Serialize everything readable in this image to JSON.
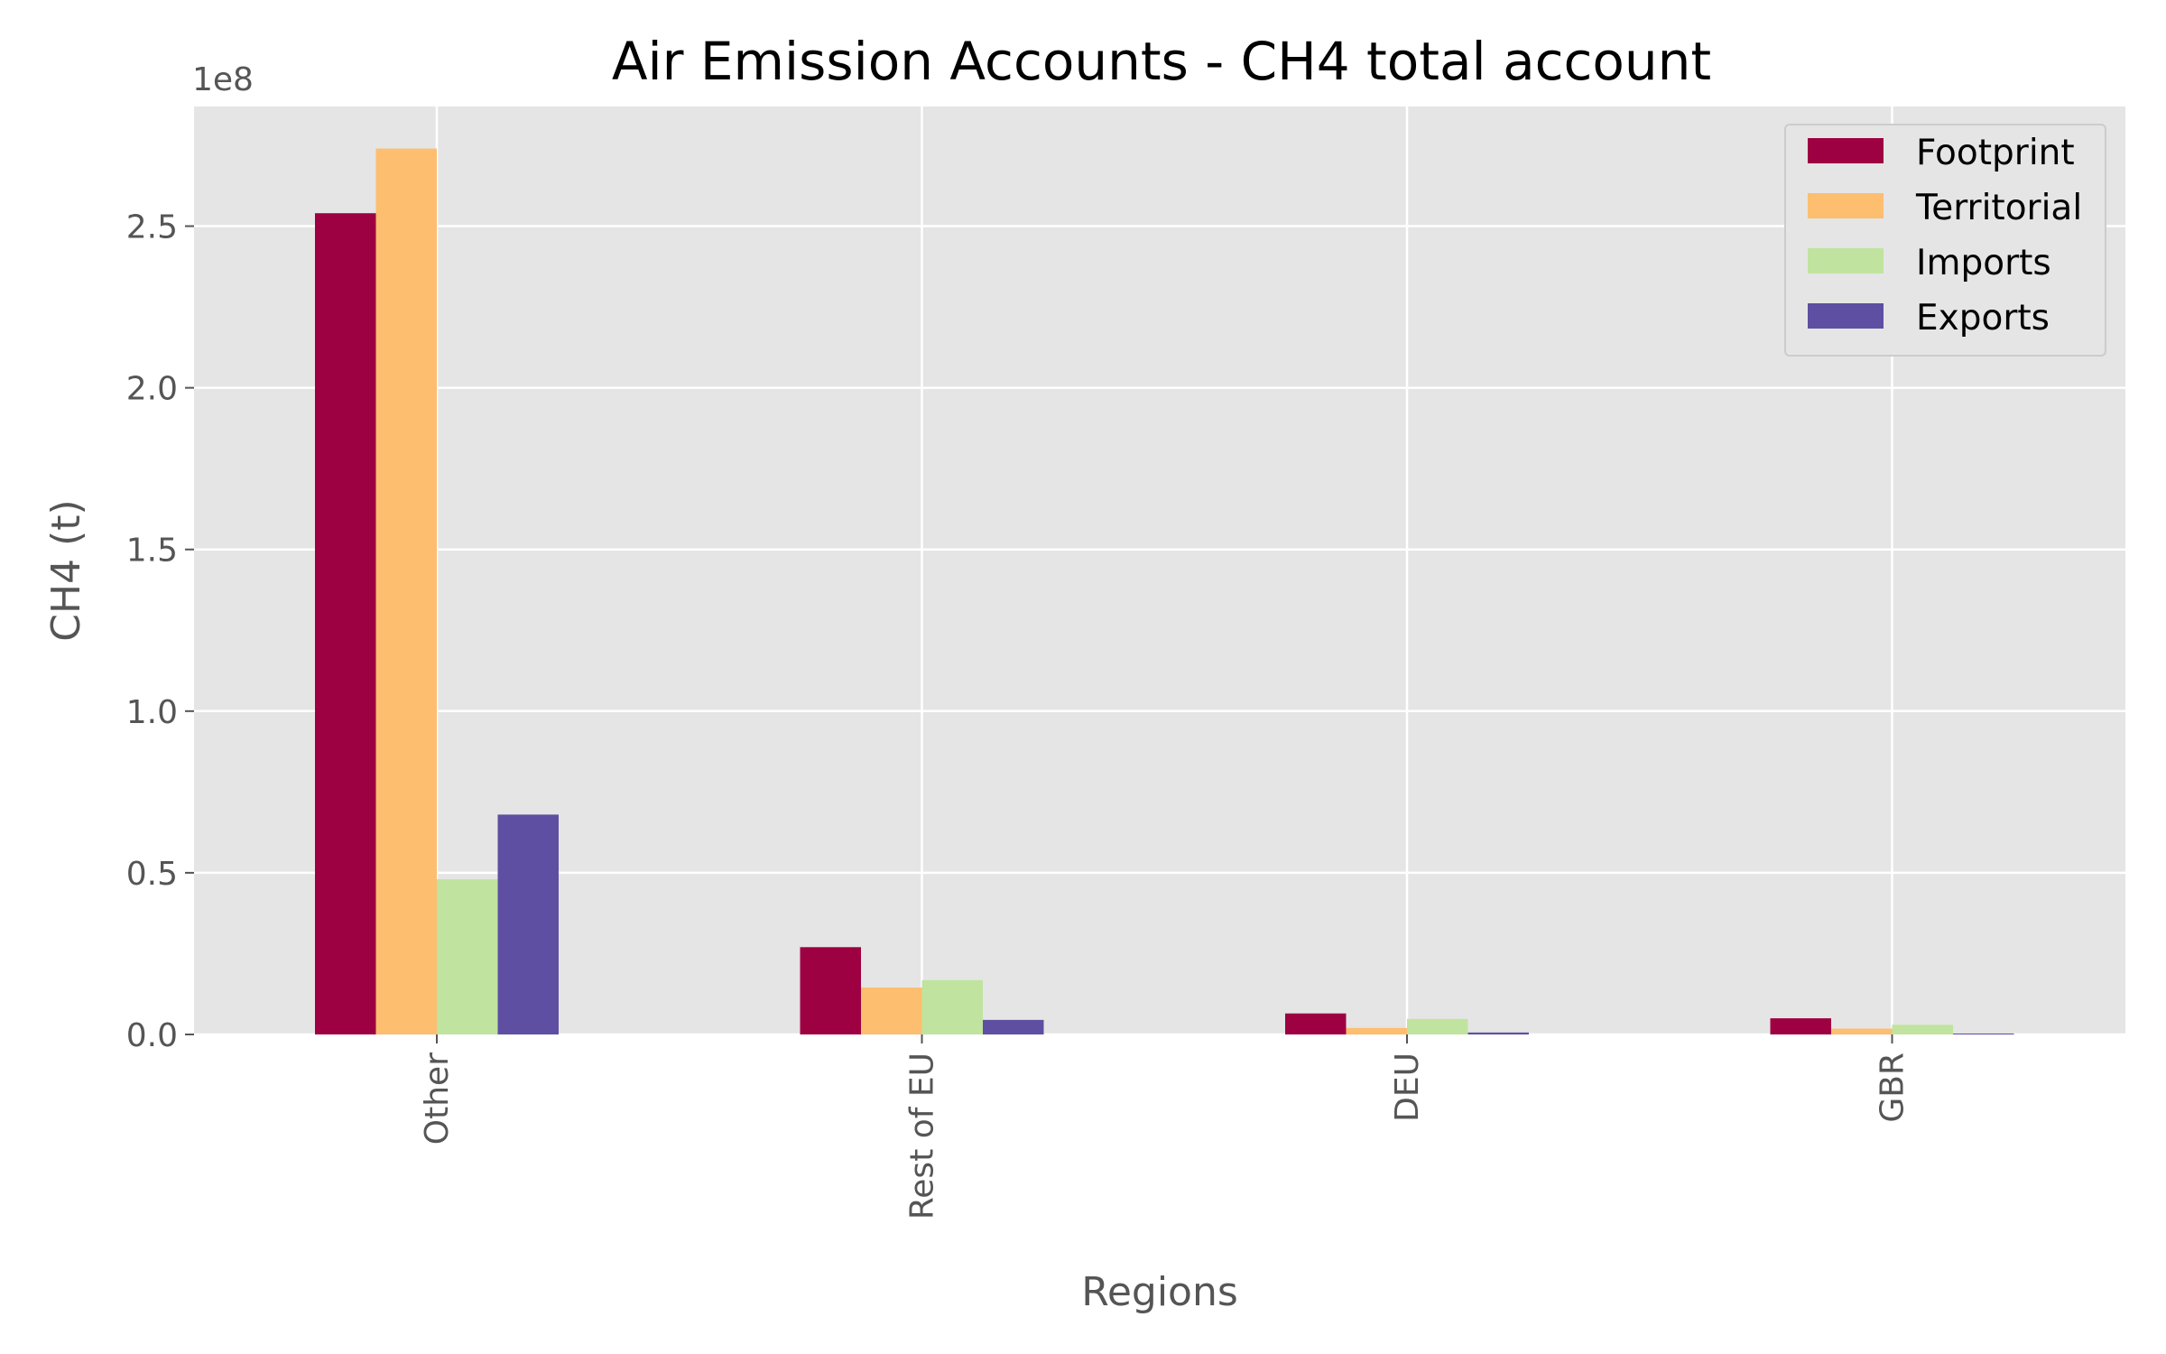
{
  "chart_data": {
    "type": "bar",
    "title": "Air Emission Accounts - CH4 total account",
    "xlabel": "Regions",
    "ylabel": "CH4 (t)",
    "y_multiplier_label": "1e8",
    "ylim": [
      0,
      2.87
    ],
    "yticks": [
      0.0,
      0.5,
      1.0,
      1.5,
      2.0,
      2.5
    ],
    "ytick_labels": [
      "0.0",
      "0.5",
      "1.0",
      "1.5",
      "2.0",
      "2.5"
    ],
    "categories": [
      "Other",
      "Rest of EU",
      "DEU",
      "GBR"
    ],
    "series": [
      {
        "name": "Footprint",
        "color": "#9e0142",
        "values": [
          2.54,
          0.27,
          0.065,
          0.05
        ]
      },
      {
        "name": "Territorial",
        "color": "#fdbe6f",
        "values": [
          2.74,
          0.145,
          0.02,
          0.018
        ]
      },
      {
        "name": "Imports",
        "color": "#c0e49f",
        "values": [
          0.48,
          0.168,
          0.048,
          0.03
        ]
      },
      {
        "name": "Exports",
        "color": "#5e4fa2",
        "values": [
          0.68,
          0.045,
          0.006,
          0.003
        ]
      }
    ],
    "grid": true,
    "legend_position": "top-right"
  }
}
